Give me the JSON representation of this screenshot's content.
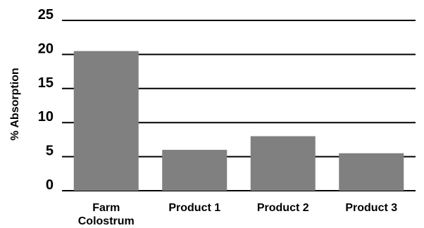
{
  "chart_data": {
    "type": "bar",
    "title": "",
    "xlabel": "",
    "ylabel": "% Absorption",
    "ylim": [
      0,
      25
    ],
    "yticks": [
      0,
      5,
      10,
      15,
      20,
      25
    ],
    "grid": true,
    "legend": "none",
    "categories": [
      [
        "Farm",
        "Colostrum"
      ],
      [
        "Product 1"
      ],
      [
        "Product 2"
      ],
      [
        "Product 3"
      ]
    ],
    "values": [
      20.5,
      6.0,
      8.0,
      5.5
    ],
    "bar_color": "#808080",
    "grid_color": "#000000"
  }
}
